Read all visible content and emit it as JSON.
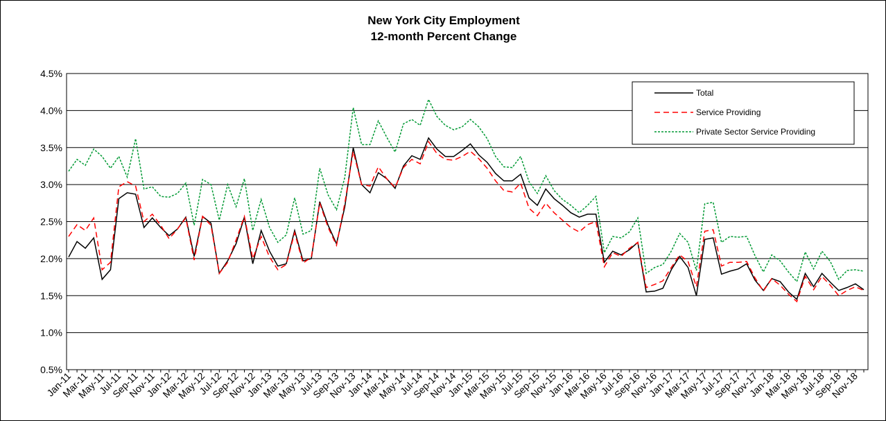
{
  "chart_data": {
    "type": "line",
    "title": "New York City Employment",
    "subtitle": "12-month Percent Change",
    "categories": [
      "Jan-11",
      null,
      "Mar-11",
      null,
      "May-11",
      null,
      "Jul-11",
      null,
      "Sep-11",
      null,
      "Nov-11",
      null,
      "Jan-12",
      null,
      "Mar-12",
      null,
      "May-12",
      null,
      "Jul-12",
      null,
      "Sep-12",
      null,
      "Nov-12",
      null,
      "Jan-13",
      null,
      "Mar-13",
      null,
      "May-13",
      null,
      "Jul-13",
      null,
      "Sep-13",
      null,
      "Nov-13",
      null,
      "Jan-14",
      null,
      "Mar-14",
      null,
      "May-14",
      null,
      "Jul-14",
      null,
      "Sep-14",
      null,
      "Nov-14",
      null,
      "Jan-15",
      null,
      "Mar-15",
      null,
      "May-15",
      null,
      "Jul-15",
      null,
      "Sep-15",
      null,
      "Nov-15",
      null,
      "Jan-16",
      null,
      "Mar-16",
      null,
      "May-16",
      null,
      "Jul-16",
      null,
      "Sep-16",
      null,
      "Nov-16",
      null,
      "Jan-17",
      null,
      "Mar-17",
      null,
      "May-17",
      null,
      "Jul-17",
      null,
      "Sep-17",
      null,
      "Nov-17",
      null,
      "Jan-18",
      null,
      "Mar-18",
      null,
      "May-18",
      null,
      "Jul-18",
      null,
      "Sep-18",
      null,
      "Nov-18",
      null
    ],
    "series": [
      {
        "name": "Total",
        "color": "#000000",
        "dash": "none",
        "values": [
          2.02,
          2.23,
          2.14,
          2.28,
          1.72,
          1.85,
          2.81,
          2.89,
          2.87,
          2.42,
          2.55,
          2.42,
          2.31,
          2.4,
          2.56,
          2.03,
          2.57,
          2.48,
          1.8,
          1.97,
          2.2,
          2.56,
          1.93,
          2.38,
          2.1,
          1.9,
          1.93,
          2.38,
          1.97,
          2.0,
          2.77,
          2.45,
          2.2,
          2.7,
          3.5,
          3.0,
          2.89,
          3.16,
          3.08,
          2.95,
          3.25,
          3.39,
          3.34,
          3.63,
          3.48,
          3.38,
          3.38,
          3.46,
          3.55,
          3.4,
          3.3,
          3.15,
          3.05,
          3.05,
          3.14,
          2.82,
          2.72,
          2.94,
          2.81,
          2.72,
          2.62,
          2.56,
          2.6,
          2.6,
          1.95,
          2.1,
          2.05,
          2.12,
          2.22,
          1.55,
          1.56,
          1.6,
          1.85,
          2.03,
          1.88,
          1.5,
          2.26,
          2.28,
          1.79,
          1.83,
          1.86,
          1.93,
          1.71,
          1.57,
          1.73,
          1.69,
          1.55,
          1.45,
          1.8,
          1.62,
          1.8,
          1.68,
          1.57,
          1.61,
          1.66,
          1.58
        ]
      },
      {
        "name": "Service Providing",
        "color": "#ff0000",
        "dash": "8,5",
        "values": [
          2.3,
          2.46,
          2.38,
          2.55,
          1.85,
          1.95,
          2.97,
          3.04,
          2.98,
          2.5,
          2.6,
          2.45,
          2.27,
          2.4,
          2.55,
          1.98,
          2.57,
          2.45,
          1.8,
          1.95,
          2.25,
          2.57,
          2.0,
          2.3,
          2.02,
          1.85,
          1.92,
          2.35,
          1.94,
          2.02,
          2.75,
          2.42,
          2.18,
          2.75,
          3.45,
          3.0,
          2.98,
          3.24,
          3.08,
          2.96,
          3.23,
          3.34,
          3.28,
          3.58,
          3.42,
          3.34,
          3.33,
          3.38,
          3.45,
          3.35,
          3.22,
          3.05,
          2.92,
          2.9,
          3.02,
          2.68,
          2.58,
          2.75,
          2.62,
          2.52,
          2.42,
          2.36,
          2.46,
          2.5,
          1.89,
          2.08,
          2.03,
          2.14,
          2.22,
          1.61,
          1.65,
          1.7,
          1.88,
          2.05,
          1.96,
          1.62,
          2.37,
          2.39,
          1.9,
          1.95,
          1.95,
          1.96,
          1.74,
          1.56,
          1.73,
          1.64,
          1.52,
          1.42,
          1.76,
          1.58,
          1.76,
          1.64,
          1.5,
          1.57,
          1.62,
          1.57
        ]
      },
      {
        "name": "Private Sector Service Providing",
        "color": "#009933",
        "dash": "3,2",
        "values": [
          3.18,
          3.34,
          3.26,
          3.48,
          3.38,
          3.22,
          3.38,
          3.1,
          3.62,
          2.94,
          2.97,
          2.84,
          2.83,
          2.88,
          3.02,
          2.45,
          3.07,
          3.0,
          2.52,
          3.0,
          2.7,
          3.08,
          2.38,
          2.8,
          2.42,
          2.22,
          2.32,
          2.82,
          2.33,
          2.38,
          3.22,
          2.86,
          2.66,
          3.1,
          4.04,
          3.54,
          3.54,
          3.86,
          3.64,
          3.44,
          3.82,
          3.88,
          3.8,
          4.15,
          3.92,
          3.8,
          3.74,
          3.78,
          3.88,
          3.78,
          3.62,
          3.38,
          3.24,
          3.23,
          3.38,
          3.04,
          2.88,
          3.12,
          2.92,
          2.8,
          2.72,
          2.62,
          2.72,
          2.84,
          2.08,
          2.3,
          2.28,
          2.36,
          2.55,
          1.8,
          1.88,
          1.92,
          2.1,
          2.34,
          2.22,
          1.84,
          2.74,
          2.76,
          2.22,
          2.3,
          2.29,
          2.3,
          2.04,
          1.82,
          2.05,
          1.97,
          1.82,
          1.69,
          2.09,
          1.86,
          2.1,
          1.96,
          1.72,
          1.84,
          1.85,
          1.83
        ]
      }
    ],
    "ylim": [
      0.5,
      4.5
    ],
    "yticks": [
      {
        "value": 0.5,
        "label": "0.5%"
      },
      {
        "value": 1.0,
        "label": "1.0%"
      },
      {
        "value": 1.5,
        "label": "1.5%"
      },
      {
        "value": 2.0,
        "label": "2.0%"
      },
      {
        "value": 2.5,
        "label": "2.5%"
      },
      {
        "value": 3.0,
        "label": "3.0%"
      },
      {
        "value": 3.5,
        "label": "3.5%"
      },
      {
        "value": 4.0,
        "label": "4.0%"
      },
      {
        "value": 4.5,
        "label": "4.5%"
      }
    ],
    "grid": true,
    "legend": "upper right"
  }
}
